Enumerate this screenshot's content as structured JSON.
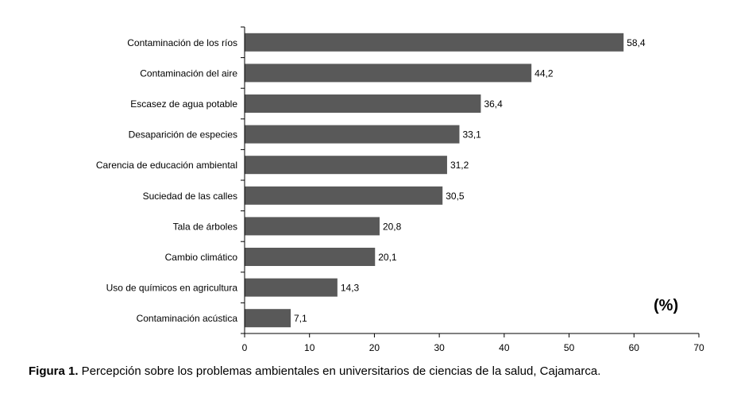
{
  "chart_data": {
    "type": "bar",
    "orientation": "horizontal",
    "categories": [
      "Contaminación de los ríos",
      "Contaminación del aire",
      "Escasez de agua potable",
      "Desaparición de especies",
      "Carencia de educación ambiental",
      "Suciedad de las calles",
      "Tala de árboles",
      "Cambio climático",
      "Uso de químicos en agricultura",
      "Contaminación acústica"
    ],
    "values": [
      58.4,
      44.2,
      36.4,
      33.1,
      31.2,
      30.5,
      20.8,
      20.1,
      14.3,
      7.1
    ],
    "value_labels": [
      "58,4",
      "44,2",
      "36,4",
      "33,1",
      "31,2",
      "30,5",
      "20,8",
      "20,1",
      "14,3",
      "7,1"
    ],
    "xlim": [
      0,
      70
    ],
    "xticks": [
      0,
      10,
      20,
      30,
      40,
      50,
      60,
      70
    ],
    "unit_label": "(%)",
    "bar_color": "#595959",
    "grid": false
  },
  "caption": {
    "label": "Figura 1.",
    "text": " Percepción sobre los problemas ambientales en universitarios de ciencias de la salud, Cajamarca."
  }
}
